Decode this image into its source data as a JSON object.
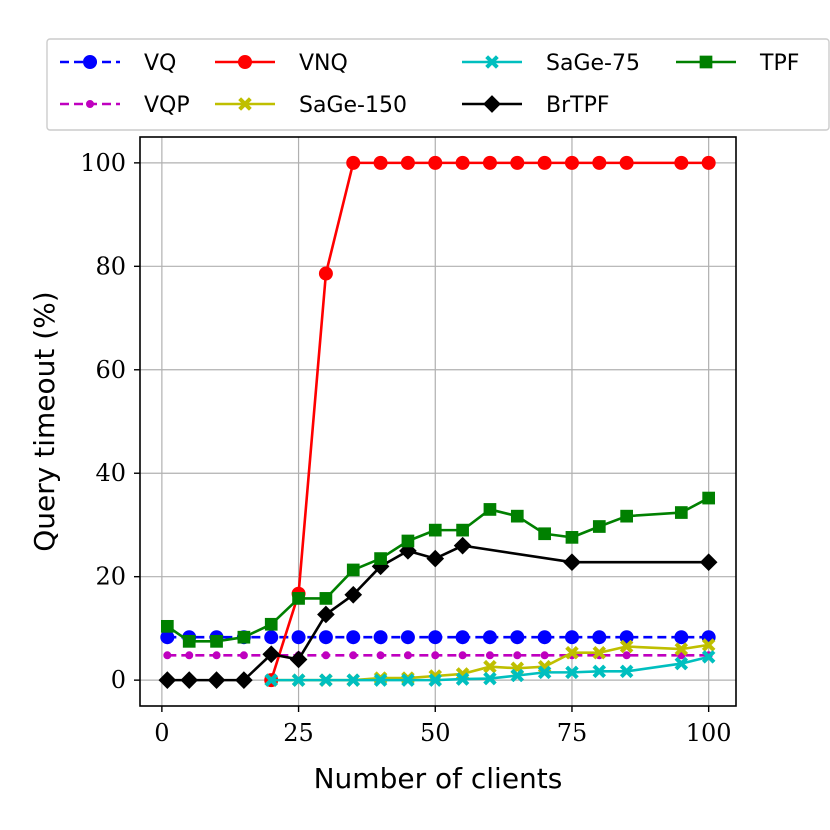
{
  "chart_data": {
    "type": "line",
    "title": "",
    "xlabel": "Number of clients",
    "ylabel": "Query timeout (%)",
    "xlim": [
      -4,
      105
    ],
    "ylim": [
      -5,
      105
    ],
    "xticks": [
      0,
      25,
      50,
      75,
      100
    ],
    "yticks": [
      0,
      20,
      40,
      60,
      80,
      100
    ],
    "grid": true,
    "legend_position": "top",
    "series": [
      {
        "name": "VQ",
        "color": "#0000ff",
        "dash": "dashed",
        "marker": "circle",
        "marker_size": "large",
        "x": [
          1,
          5,
          10,
          15,
          20,
          25,
          30,
          35,
          40,
          45,
          50,
          55,
          60,
          65,
          70,
          75,
          80,
          85,
          95,
          100
        ],
        "y": [
          8.3,
          8.3,
          8.3,
          8.3,
          8.3,
          8.3,
          8.3,
          8.3,
          8.3,
          8.3,
          8.3,
          8.3,
          8.3,
          8.3,
          8.3,
          8.3,
          8.3,
          8.3,
          8.3,
          8.3
        ]
      },
      {
        "name": "VQP",
        "color": "#bf00bf",
        "dash": "dashed",
        "marker": "circle",
        "marker_size": "small",
        "x": [
          1,
          5,
          10,
          15,
          20,
          25,
          30,
          35,
          40,
          45,
          50,
          55,
          60,
          65,
          70,
          75,
          80,
          85,
          95,
          100
        ],
        "y": [
          4.8,
          4.8,
          4.8,
          4.8,
          4.8,
          4.8,
          4.8,
          4.8,
          4.8,
          4.8,
          4.8,
          4.8,
          4.8,
          4.8,
          4.8,
          4.8,
          4.8,
          4.8,
          4.8,
          4.8
        ]
      },
      {
        "name": "VNQ",
        "color": "#ff0000",
        "dash": "solid",
        "marker": "circle",
        "marker_size": "large",
        "x": [
          20,
          25,
          30,
          35,
          40,
          45,
          50,
          55,
          60,
          65,
          70,
          75,
          80,
          85,
          95,
          100
        ],
        "y": [
          0,
          16.7,
          78.6,
          100,
          100,
          100,
          100,
          100,
          100,
          100,
          100,
          100,
          100,
          100,
          100,
          100
        ]
      },
      {
        "name": "SaGe-150",
        "color": "#bfbf00",
        "dash": "solid",
        "marker": "x-filled",
        "marker_size": "large",
        "x": [
          20,
          25,
          30,
          35,
          40,
          45,
          50,
          55,
          60,
          65,
          70,
          75,
          80,
          85,
          95,
          100
        ],
        "y": [
          0,
          0,
          0,
          0,
          0.4,
          0.4,
          0.8,
          1.2,
          2.6,
          2.3,
          2.6,
          5.3,
          5.3,
          6.5,
          6.0,
          6.8
        ]
      },
      {
        "name": "SaGe-75",
        "color": "#00bfbf",
        "dash": "solid",
        "marker": "x-filled",
        "marker_size": "large",
        "x": [
          20,
          25,
          30,
          35,
          40,
          45,
          50,
          55,
          60,
          65,
          70,
          75,
          80,
          85,
          95,
          100
        ],
        "y": [
          0,
          0,
          0,
          0,
          0,
          0,
          0,
          0.2,
          0.3,
          0.9,
          1.5,
          1.5,
          1.7,
          1.7,
          3.2,
          4.5
        ]
      },
      {
        "name": "BrTPF",
        "color": "#000000",
        "dash": "solid",
        "marker": "diamond",
        "marker_size": "large",
        "x": [
          1,
          5,
          10,
          15,
          20,
          25,
          30,
          35,
          40,
          45,
          50,
          55,
          75,
          100
        ],
        "y": [
          0,
          0,
          0,
          0,
          5.0,
          4.0,
          12.7,
          16.5,
          22.0,
          25.0,
          23.5,
          26.0,
          22.8,
          22.8
        ]
      },
      {
        "name": "TPF",
        "color": "#008000",
        "dash": "solid",
        "marker": "square",
        "marker_size": "large",
        "x": [
          1,
          5,
          10,
          15,
          20,
          25,
          30,
          35,
          40,
          45,
          50,
          55,
          60,
          65,
          70,
          75,
          80,
          85,
          95,
          100
        ],
        "y": [
          10.4,
          7.5,
          7.5,
          8.3,
          10.8,
          15.8,
          15.8,
          21.3,
          23.5,
          26.9,
          29.0,
          29.0,
          33.0,
          31.7,
          28.3,
          27.6,
          29.7,
          31.7,
          32.4,
          35.2
        ]
      }
    ]
  }
}
